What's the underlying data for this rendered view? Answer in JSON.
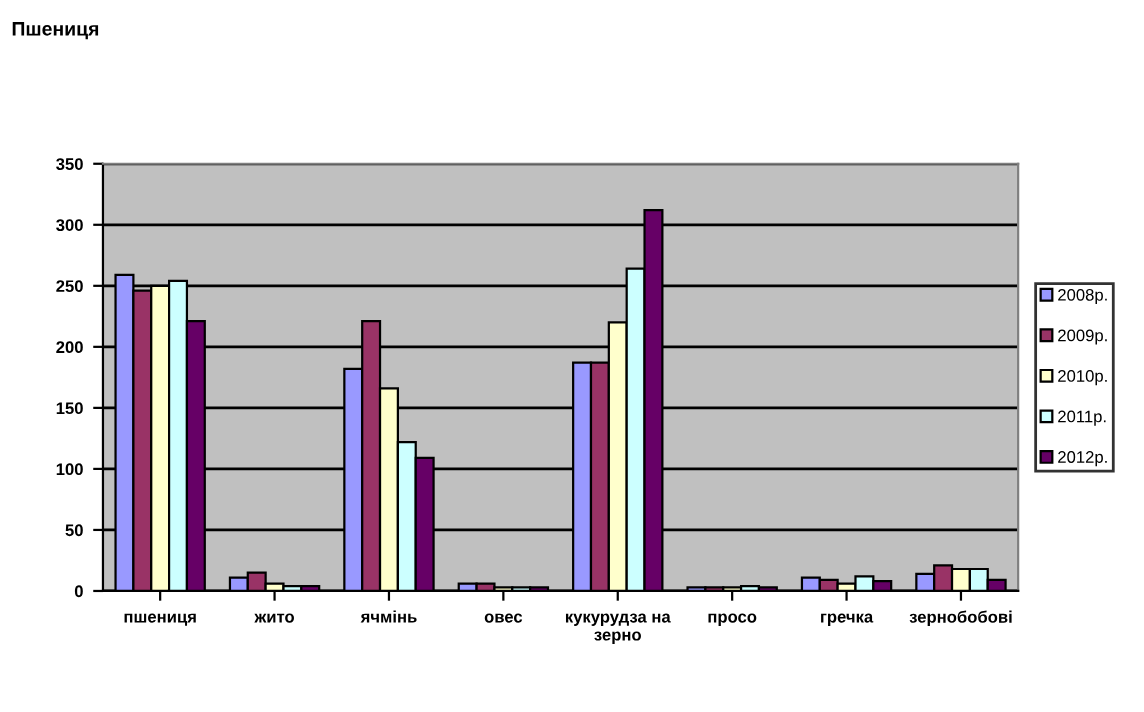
{
  "chart_data": {
    "type": "bar",
    "title": "Пшениця",
    "categories": [
      "пшениця",
      "жито",
      "ячмінь",
      "овес",
      "кукурудза на зерно",
      "просо",
      "гречка",
      "зернобобові"
    ],
    "series": [
      {
        "name": "2008р.",
        "color": "#9999ff",
        "values": [
          259,
          11,
          182,
          6,
          187,
          3,
          11,
          14
        ]
      },
      {
        "name": "2009р.",
        "color": "#993366",
        "values": [
          246,
          15,
          221,
          6,
          187,
          3,
          9,
          21
        ]
      },
      {
        "name": "2010р.",
        "color": "#ffffcc",
        "values": [
          250,
          6,
          166,
          3,
          220,
          3,
          6,
          18
        ]
      },
      {
        "name": "2011р.",
        "color": "#ccffff",
        "values": [
          254,
          4,
          122,
          3,
          264,
          4,
          12,
          18
        ]
      },
      {
        "name": "2012р.",
        "color": "#660066",
        "values": [
          221,
          4,
          109,
          3,
          312,
          3,
          8,
          9
        ]
      }
    ],
    "ylim": [
      0,
      350
    ],
    "yticks": [
      0,
      50,
      100,
      150,
      200,
      250,
      300,
      350
    ],
    "grid": "y",
    "legend": "right"
  }
}
